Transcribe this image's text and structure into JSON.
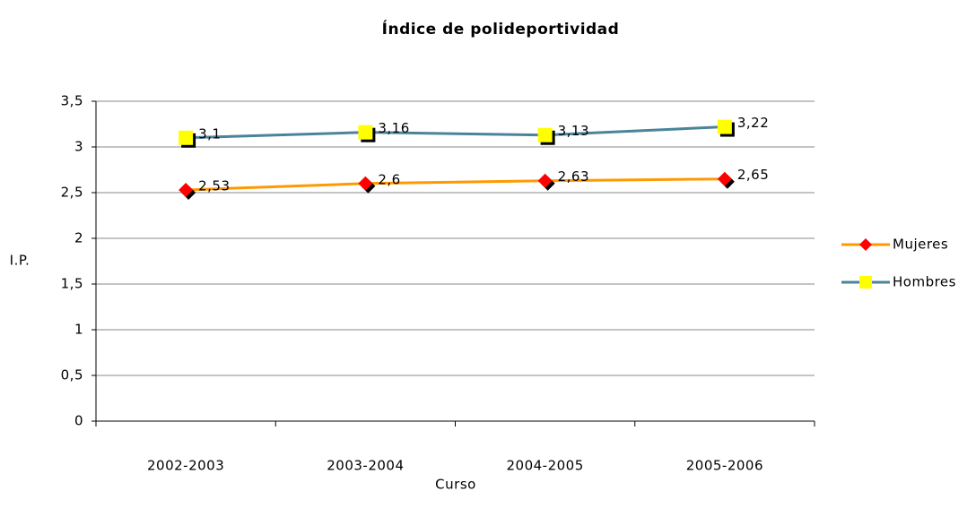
{
  "chart_data": {
    "type": "line",
    "title": "Índice de polideportividad",
    "x_label": "Curso",
    "y_label": "I.P.",
    "categories": [
      "2002-2003",
      "2003-2004",
      "2004-2005",
      "2005-2006"
    ],
    "series": [
      {
        "name": "Mujeres",
        "color": "#ff9900",
        "marker": "diamond",
        "marker_color": "#ff0000",
        "values": [
          2.53,
          2.6,
          2.63,
          2.65
        ],
        "value_labels": [
          "2,53",
          "2,6",
          "2,63",
          "2,65"
        ]
      },
      {
        "name": "Hombres",
        "color": "#4a8499",
        "marker": "square",
        "marker_color": "#ffff00",
        "values": [
          3.1,
          3.16,
          3.13,
          3.22
        ],
        "value_labels": [
          "3,1",
          "3,16",
          "3,13",
          "3,22"
        ]
      }
    ],
    "ylim": [
      0,
      3.5
    ],
    "yticks": [
      0,
      {
        "value": 0.5,
        "label": "0,5"
      },
      1,
      {
        "value": 1.5,
        "label": "1,5"
      },
      2,
      {
        "value": 2.5,
        "label": "2,5"
      },
      3,
      {
        "value": 3.5,
        "label": "3,5"
      }
    ],
    "grid": true,
    "legend": "right"
  }
}
